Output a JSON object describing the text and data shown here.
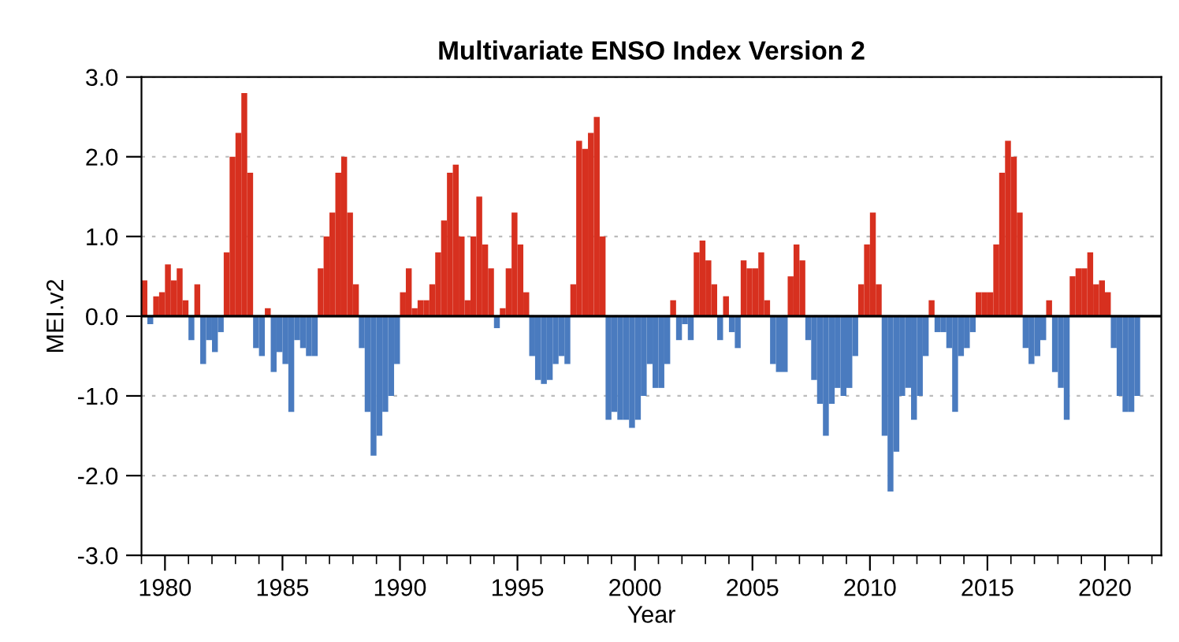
{
  "chart_data": {
    "type": "bar",
    "title": "Multivariate ENSO Index Version 2",
    "xlabel": "Year",
    "ylabel": "MEI.v2",
    "x": [
      1979,
      1979.25,
      1979.5,
      1979.75,
      1980,
      1980.25,
      1980.5,
      1980.75,
      1981,
      1981.25,
      1981.5,
      1981.75,
      1982,
      1982.25,
      1982.5,
      1982.75,
      1983,
      1983.25,
      1983.5,
      1983.75,
      1984,
      1984.25,
      1984.5,
      1984.75,
      1985,
      1985.25,
      1985.5,
      1985.75,
      1986,
      1986.25,
      1986.5,
      1986.75,
      1987,
      1987.25,
      1987.5,
      1987.75,
      1988,
      1988.25,
      1988.5,
      1988.75,
      1989,
      1989.25,
      1989.5,
      1989.75,
      1990,
      1990.25,
      1990.5,
      1990.75,
      1991,
      1991.25,
      1991.5,
      1991.75,
      1992,
      1992.25,
      1992.5,
      1992.75,
      1993,
      1993.25,
      1993.5,
      1993.75,
      1994,
      1994.25,
      1994.5,
      1994.75,
      1995,
      1995.25,
      1995.5,
      1995.75,
      1996,
      1996.25,
      1996.5,
      1996.75,
      1997,
      1997.25,
      1997.5,
      1997.75,
      1998,
      1998.25,
      1998.5,
      1998.75,
      1999,
      1999.25,
      1999.5,
      1999.75,
      2000,
      2000.25,
      2000.5,
      2000.75,
      2001,
      2001.25,
      2001.5,
      2001.75,
      2002,
      2002.25,
      2002.5,
      2002.75,
      2003,
      2003.25,
      2003.5,
      2003.75,
      2004,
      2004.25,
      2004.5,
      2004.75,
      2005,
      2005.25,
      2005.5,
      2005.75,
      2006,
      2006.25,
      2006.5,
      2006.75,
      2007,
      2007.25,
      2007.5,
      2007.75,
      2008,
      2008.25,
      2008.5,
      2008.75,
      2009,
      2009.25,
      2009.5,
      2009.75,
      2010,
      2010.25,
      2010.5,
      2010.75,
      2011,
      2011.25,
      2011.5,
      2011.75,
      2012,
      2012.25,
      2012.5,
      2012.75,
      2013,
      2013.25,
      2013.5,
      2013.75,
      2014,
      2014.25,
      2014.5,
      2014.75,
      2015,
      2015.25,
      2015.5,
      2015.75,
      2016,
      2016.25,
      2016.5,
      2016.75,
      2017,
      2017.25,
      2017.5,
      2017.75,
      2018,
      2018.25,
      2018.5,
      2018.75,
      2019,
      2019.25,
      2019.5,
      2019.75,
      2020,
      2020.25,
      2020.5,
      2020.75,
      2021,
      2021.25
    ],
    "values": [
      0.45,
      -0.1,
      0.25,
      0.3,
      0.65,
      0.45,
      0.6,
      0.2,
      -0.3,
      0.4,
      -0.6,
      -0.3,
      -0.45,
      -0.2,
      0.8,
      2.0,
      2.3,
      2.8,
      1.8,
      -0.4,
      -0.5,
      0.1,
      -0.7,
      -0.45,
      -0.6,
      -1.2,
      -0.3,
      -0.4,
      -0.5,
      -0.5,
      0.6,
      1.0,
      1.3,
      1.8,
      2.0,
      1.3,
      0.4,
      -0.4,
      -1.2,
      -1.75,
      -1.5,
      -1.2,
      -1.0,
      -0.6,
      0.3,
      0.6,
      0.1,
      0.2,
      0.2,
      0.4,
      0.8,
      1.2,
      1.8,
      1.9,
      1.0,
      0.2,
      1.0,
      1.5,
      0.9,
      0.6,
      -0.15,
      0.1,
      0.6,
      1.3,
      0.9,
      0.3,
      -0.5,
      -0.8,
      -0.85,
      -0.8,
      -0.6,
      -0.5,
      -0.6,
      0.4,
      2.2,
      2.1,
      2.3,
      2.5,
      1.0,
      -1.3,
      -1.2,
      -1.3,
      -1.3,
      -1.4,
      -1.3,
      -1.0,
      -0.6,
      -0.9,
      -0.9,
      -0.6,
      0.2,
      -0.3,
      -0.1,
      -0.3,
      0.8,
      0.95,
      0.7,
      0.4,
      -0.3,
      0.25,
      -0.2,
      -0.4,
      0.7,
      0.6,
      0.6,
      0.8,
      0.2,
      -0.6,
      -0.7,
      -0.7,
      0.5,
      0.9,
      0.7,
      -0.3,
      -0.8,
      -1.1,
      -1.5,
      -1.1,
      -0.9,
      -1.0,
      -0.9,
      -0.5,
      0.4,
      0.9,
      1.3,
      0.4,
      -1.5,
      -2.2,
      -1.7,
      -1.0,
      -0.9,
      -1.3,
      -1.0,
      -0.5,
      0.2,
      -0.2,
      -0.2,
      -0.4,
      -1.2,
      -0.5,
      -0.4,
      -0.2,
      0.3,
      0.3,
      0.3,
      0.9,
      1.8,
      2.2,
      2.0,
      1.3,
      -0.4,
      -0.6,
      -0.5,
      -0.3,
      0.2,
      -0.7,
      -0.9,
      -1.3,
      0.5,
      0.6,
      0.6,
      0.8,
      0.4,
      0.45,
      0.3,
      -0.4,
      -1.0,
      -1.2,
      -1.2,
      -1.0
    ],
    "colors": [
      "#d7301f",
      "#4a7bbf",
      "#d7301f",
      "#d7301f",
      "#d7301f",
      "#d7301f",
      "#d7301f",
      "#d7301f",
      "#4a7bbf",
      "#d7301f",
      "#4a7bbf",
      "#4a7bbf",
      "#4a7bbf",
      "#4a7bbf",
      "#d7301f",
      "#d7301f",
      "#d7301f",
      "#d7301f",
      "#d7301f",
      "#4a7bbf",
      "#4a7bbf",
      "#d7301f",
      "#4a7bbf",
      "#4a7bbf",
      "#4a7bbf",
      "#4a7bbf",
      "#4a7bbf",
      "#4a7bbf",
      "#4a7bbf",
      "#4a7bbf",
      "#d7301f",
      "#d7301f",
      "#d7301f",
      "#d7301f",
      "#d7301f",
      "#d7301f",
      "#d7301f",
      "#4a7bbf",
      "#4a7bbf",
      "#4a7bbf",
      "#4a7bbf",
      "#4a7bbf",
      "#4a7bbf",
      "#4a7bbf",
      "#d7301f",
      "#d7301f",
      "#d7301f",
      "#d7301f",
      "#d7301f",
      "#d7301f",
      "#d7301f",
      "#d7301f",
      "#d7301f",
      "#d7301f",
      "#d7301f",
      "#d7301f",
      "#d7301f",
      "#d7301f",
      "#d7301f",
      "#d7301f",
      "#4a7bbf",
      "#d7301f",
      "#d7301f",
      "#d7301f",
      "#d7301f",
      "#d7301f",
      "#4a7bbf",
      "#4a7bbf",
      "#4a7bbf",
      "#4a7bbf",
      "#4a7bbf",
      "#4a7bbf",
      "#4a7bbf",
      "#d7301f",
      "#d7301f",
      "#d7301f",
      "#d7301f",
      "#d7301f",
      "#d7301f",
      "#4a7bbf",
      "#4a7bbf",
      "#4a7bbf",
      "#4a7bbf",
      "#4a7bbf",
      "#4a7bbf",
      "#4a7bbf",
      "#4a7bbf",
      "#4a7bbf",
      "#4a7bbf",
      "#4a7bbf",
      "#d7301f",
      "#4a7bbf",
      "#4a7bbf",
      "#4a7bbf",
      "#d7301f",
      "#d7301f",
      "#d7301f",
      "#d7301f",
      "#4a7bbf",
      "#d7301f",
      "#4a7bbf",
      "#4a7bbf",
      "#d7301f",
      "#d7301f",
      "#d7301f",
      "#d7301f",
      "#d7301f",
      "#4a7bbf",
      "#4a7bbf",
      "#4a7bbf",
      "#d7301f",
      "#d7301f",
      "#d7301f",
      "#4a7bbf",
      "#4a7bbf",
      "#4a7bbf",
      "#4a7bbf",
      "#4a7bbf",
      "#4a7bbf",
      "#4a7bbf",
      "#4a7bbf",
      "#4a7bbf",
      "#d7301f",
      "#d7301f",
      "#d7301f",
      "#d7301f",
      "#4a7bbf",
      "#4a7bbf",
      "#4a7bbf",
      "#4a7bbf",
      "#4a7bbf",
      "#4a7bbf",
      "#4a7bbf",
      "#4a7bbf",
      "#d7301f",
      "#4a7bbf",
      "#4a7bbf",
      "#4a7bbf",
      "#4a7bbf",
      "#4a7bbf",
      "#4a7bbf",
      "#4a7bbf",
      "#d7301f",
      "#d7301f",
      "#d7301f",
      "#d7301f",
      "#d7301f",
      "#d7301f",
      "#d7301f",
      "#d7301f",
      "#4a7bbf",
      "#4a7bbf",
      "#4a7bbf",
      "#4a7bbf",
      "#d7301f",
      "#4a7bbf",
      "#4a7bbf",
      "#4a7bbf",
      "#d7301f",
      "#d7301f",
      "#d7301f",
      "#d7301f",
      "#d7301f",
      "#d7301f",
      "#d7301f",
      "#4a7bbf",
      "#4a7bbf",
      "#4a7bbf",
      "#4a7bbf",
      "#4a7bbf"
    ],
    "xlim": [
      1979,
      2022.4
    ],
    "xticks": [
      {
        "value": 1979,
        "label": null
      },
      1980,
      {
        "value": 1981,
        "label": null
      },
      {
        "value": 1982,
        "label": null
      },
      {
        "value": 1983,
        "label": null
      },
      {
        "value": 1984,
        "label": null
      },
      1985,
      {
        "value": 1986,
        "label": null
      },
      {
        "value": 1987,
        "label": null
      },
      {
        "value": 1988,
        "label": null
      },
      {
        "value": 1989,
        "label": null
      },
      1990,
      {
        "value": 1991,
        "label": null
      },
      {
        "value": 1992,
        "label": null
      },
      {
        "value": 1993,
        "label": null
      },
      {
        "value": 1994,
        "label": null
      },
      1995,
      {
        "value": 1996,
        "label": null
      },
      {
        "value": 1997,
        "label": null
      },
      {
        "value": 1998,
        "label": null
      },
      {
        "value": 1999,
        "label": null
      },
      2000,
      {
        "value": 2001,
        "label": null
      },
      {
        "value": 2002,
        "label": null
      },
      {
        "value": 2003,
        "label": null
      },
      {
        "value": 2004,
        "label": null
      },
      2005,
      {
        "value": 2006,
        "label": null
      },
      {
        "value": 2007,
        "label": null
      },
      {
        "value": 2008,
        "label": null
      },
      {
        "value": 2009,
        "label": null
      },
      2010,
      {
        "value": 2011,
        "label": null
      },
      {
        "value": 2012,
        "label": null
      },
      {
        "value": 2013,
        "label": null
      },
      {
        "value": 2014,
        "label": null
      },
      2015,
      {
        "value": 2016,
        "label": null
      },
      {
        "value": 2017,
        "label": null
      },
      {
        "value": 2018,
        "label": null
      },
      {
        "value": 2019,
        "label": null
      },
      2020,
      {
        "value": 2021,
        "label": null
      },
      {
        "value": 2022,
        "label": null
      }
    ],
    "ylim": [
      -3,
      3
    ],
    "yticks": [
      {
        "value": -3,
        "label": "-3.0"
      },
      {
        "value": -2,
        "label": "-2.0"
      },
      {
        "value": -1,
        "label": "-1.0"
      },
      {
        "value": 0,
        "label": "0.0"
      },
      {
        "value": 1,
        "label": "1.0"
      },
      {
        "value": 2,
        "label": "2.0"
      },
      {
        "value": 3,
        "label": "3.0"
      }
    ],
    "ref_lines": [
      {
        "axis": "y",
        "value": 0,
        "color": "#000000"
      }
    ],
    "grid": "y"
  }
}
